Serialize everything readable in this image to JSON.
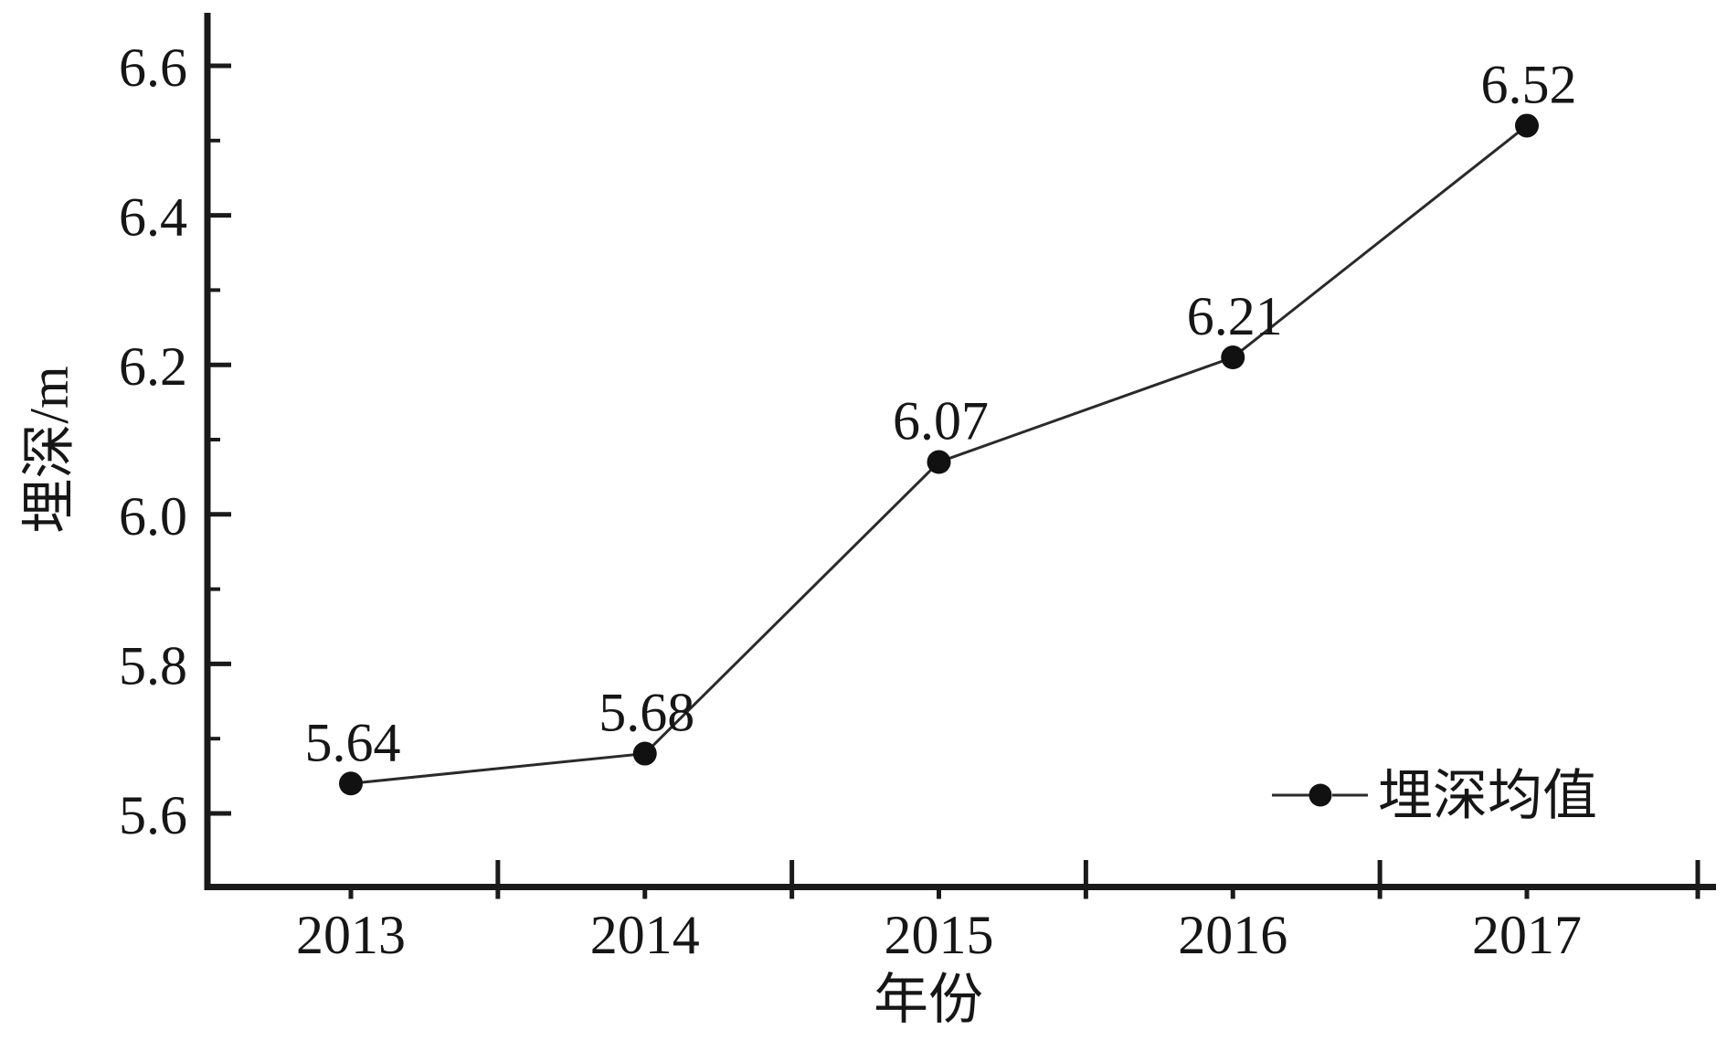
{
  "chart_data": {
    "type": "line",
    "title": "",
    "categories": [
      "2013",
      "2014",
      "2015",
      "2016",
      "2017"
    ],
    "series": [
      {
        "name": "埋深均值",
        "values": [
          5.64,
          5.68,
          6.07,
          6.21,
          6.52
        ]
      }
    ],
    "point_labels": [
      "5.64",
      "5.68",
      "6.07",
      "6.21",
      "6.52"
    ],
    "xlabel": "年份",
    "ylabel": "埋深/m",
    "ylim": [
      5.5,
      6.67
    ],
    "yticks": [
      5.6,
      5.8,
      6.0,
      6.2,
      6.4,
      6.6
    ],
    "ytick_labels": [
      "5.6",
      "5.8",
      "6.0",
      "6.2",
      "6.4",
      "6.6"
    ],
    "y_minor_ticks": [
      5.7,
      5.9,
      6.1,
      6.3,
      6.5
    ],
    "grid": false,
    "marker": "filled-circle",
    "legend": {
      "position": "inside-lower-right",
      "entries": [
        "埋深均值"
      ]
    },
    "colors": {
      "axis": "#1a1a1a",
      "line": "#2a2a2a",
      "marker": "#111111",
      "text": "#161616",
      "background": "#ffffff"
    }
  }
}
